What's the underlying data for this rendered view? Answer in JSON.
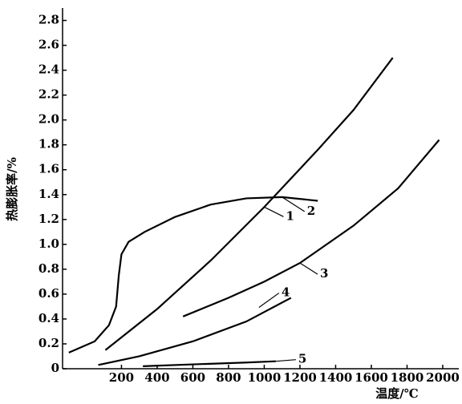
{
  "chart_data": {
    "type": "line",
    "x_label": "温度/℃",
    "y_label": "热膨胀率/%",
    "xlim": [
      -130,
      2090
    ],
    "ylim": [
      0,
      2.9
    ],
    "xticks": [
      200,
      400,
      600,
      800,
      1000,
      1200,
      1400,
      1600,
      1800,
      2000
    ],
    "yticks": [
      0,
      0.2,
      0.4,
      0.6,
      0.8,
      {
        "value": 1.0,
        "label": "1.0"
      },
      1.2,
      1.4,
      1.6,
      1.8,
      {
        "value": 2.0,
        "label": "2.0"
      },
      2.2,
      2.4,
      2.6,
      2.8
    ],
    "series": [
      {
        "name": "1",
        "color": "#000000",
        "x": [
          110,
          400,
          700,
          1000,
          1300,
          1500,
          1720
        ],
        "values": [
          0.15,
          0.48,
          0.87,
          1.3,
          1.76,
          2.08,
          2.5
        ]
      },
      {
        "name": "2",
        "color": "#000000",
        "x": [
          -95,
          50,
          130,
          170,
          185,
          200,
          240,
          330,
          500,
          700,
          900,
          1100,
          1300
        ],
        "values": [
          0.13,
          0.22,
          0.35,
          0.5,
          0.75,
          0.92,
          1.02,
          1.1,
          1.22,
          1.32,
          1.37,
          1.38,
          1.35
        ]
      },
      {
        "name": "3",
        "color": "#000000",
        "x": [
          545,
          800,
          1000,
          1200,
          1500,
          1750,
          1980
        ],
        "values": [
          0.42,
          0.57,
          0.7,
          0.85,
          1.15,
          1.45,
          1.84
        ]
      },
      {
        "name": "4",
        "color": "#000000",
        "x": [
          70,
          300,
          600,
          900,
          1150
        ],
        "values": [
          0.03,
          0.1,
          0.22,
          0.38,
          0.57
        ]
      },
      {
        "name": "5",
        "color": "#000000",
        "x": [
          320,
          600,
          900,
          1065
        ],
        "values": [
          0.02,
          0.035,
          0.05,
          0.06
        ]
      }
    ]
  }
}
